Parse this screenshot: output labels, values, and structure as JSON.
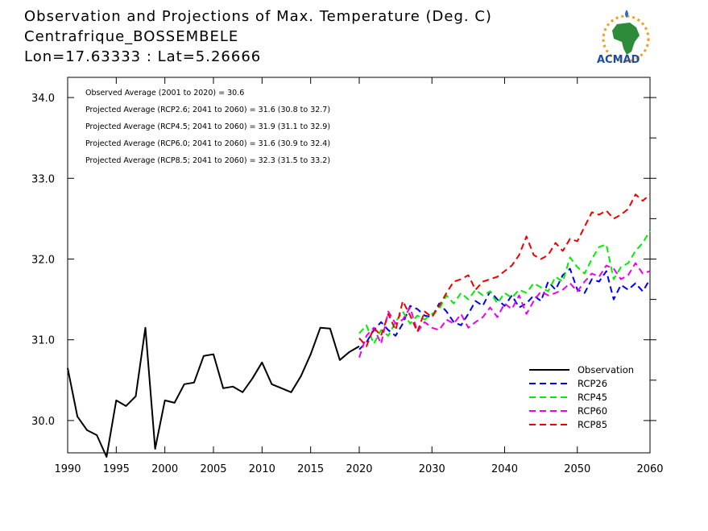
{
  "header": {
    "title_lines": [
      "Observation and Projections of Max. Temperature (Deg. C)",
      "Centrafrique_BOSSEMBELE",
      "Lon=17.63333 : Lat=5.26666"
    ]
  },
  "logo": {
    "text": "ACMAD",
    "icon": "africa-map-sun-icon"
  },
  "colors": {
    "Observation": "#000000",
    "RCP26": "#0000ee",
    "RCP45": "#00ee00",
    "RCP60": "#ee00ee",
    "RCP85": "#ee0000"
  },
  "chart_data": {
    "type": "line",
    "xlim": [
      1990,
      2060
    ],
    "ylim": [
      29.6,
      34.25
    ],
    "xticks": [
      1990,
      1995,
      2000,
      2005,
      2010,
      2015,
      2020,
      2030,
      2040,
      2050,
      2060
    ],
    "yticks": [
      30.0,
      31.0,
      32.0,
      33.0,
      34.0
    ],
    "ytick_labels": [
      "30.0",
      "31.0",
      "32.0",
      "33.0",
      "34.0"
    ],
    "annotations": [
      "Observed Average (2001 to 2020) = 30.6",
      "Projected Average (RCP2.6; 2041 to 2060) = 31.6 (30.8 to 32.7)",
      "Projected Average (RCP4.5; 2041 to 2060) = 31.9 (31.1 to 32.9)",
      "Projected Average (RCP6.0; 2041 to 2060) = 31.6 (30.9 to 32.4)",
      "Projected Average (RCP8.5; 2041 to 2060) = 32.3 (31.5 to 33.2)"
    ],
    "legend_position": "bottom-right",
    "series": [
      {
        "name": "Observation",
        "style": "solid",
        "x": [
          1990,
          1991,
          1992,
          1993,
          1994,
          1995,
          1996,
          1997,
          1998,
          1999,
          2000,
          2001,
          2002,
          2003,
          2004,
          2005,
          2006,
          2007,
          2008,
          2009,
          2010,
          2011,
          2012,
          2013,
          2014,
          2015,
          2016,
          2017,
          2018,
          2019,
          2020
        ],
        "values": [
          30.65,
          30.05,
          29.88,
          29.82,
          29.55,
          30.25,
          30.18,
          30.3,
          31.15,
          29.65,
          30.25,
          30.22,
          30.45,
          30.47,
          30.8,
          30.82,
          30.4,
          30.42,
          30.35,
          30.52,
          30.72,
          30.45,
          30.4,
          30.35,
          30.55,
          30.82,
          31.15,
          31.14,
          30.75,
          30.85,
          30.92
        ]
      },
      {
        "name": "RCP26",
        "style": "dashed",
        "x": [
          2020,
          2021,
          2022,
          2023,
          2024,
          2025,
          2026,
          2027,
          2028,
          2029,
          2030,
          2031,
          2032,
          2033,
          2034,
          2035,
          2036,
          2037,
          2038,
          2039,
          2040,
          2041,
          2042,
          2043,
          2044,
          2045,
          2046,
          2047,
          2048,
          2049,
          2050,
          2051,
          2052,
          2053,
          2054,
          2055,
          2056,
          2057,
          2058,
          2059,
          2060
        ],
        "values": [
          30.88,
          30.97,
          31.12,
          31.22,
          31.12,
          31.05,
          31.2,
          31.42,
          31.38,
          31.3,
          31.28,
          31.45,
          31.35,
          31.22,
          31.18,
          31.32,
          31.48,
          31.42,
          31.6,
          31.5,
          31.42,
          31.55,
          31.4,
          31.45,
          31.55,
          31.48,
          31.72,
          31.62,
          31.8,
          31.88,
          31.62,
          31.58,
          31.75,
          31.72,
          31.85,
          31.5,
          31.68,
          31.62,
          31.7,
          31.6,
          31.75
        ]
      },
      {
        "name": "RCP45",
        "style": "dashed",
        "x": [
          2020,
          2021,
          2022,
          2023,
          2024,
          2025,
          2026,
          2027,
          2028,
          2029,
          2030,
          2031,
          2032,
          2033,
          2034,
          2035,
          2036,
          2037,
          2038,
          2039,
          2040,
          2041,
          2042,
          2043,
          2044,
          2045,
          2046,
          2047,
          2048,
          2049,
          2050,
          2051,
          2052,
          2053,
          2054,
          2055,
          2056,
          2057,
          2058,
          2059,
          2060
        ],
        "values": [
          31.08,
          31.18,
          30.95,
          31.12,
          31.05,
          31.22,
          31.35,
          31.2,
          31.3,
          31.25,
          31.32,
          31.38,
          31.55,
          31.45,
          31.58,
          31.5,
          31.62,
          31.55,
          31.6,
          31.45,
          31.58,
          31.52,
          31.62,
          31.58,
          31.7,
          31.65,
          31.6,
          31.78,
          31.72,
          32.02,
          31.9,
          31.82,
          32.0,
          32.15,
          32.18,
          31.75,
          31.9,
          31.95,
          32.1,
          32.2,
          32.35
        ]
      },
      {
        "name": "RCP60",
        "style": "dashed",
        "x": [
          2020,
          2021,
          2022,
          2023,
          2024,
          2025,
          2026,
          2027,
          2028,
          2029,
          2030,
          2031,
          2032,
          2033,
          2034,
          2035,
          2036,
          2037,
          2038,
          2039,
          2040,
          2041,
          2042,
          2043,
          2044,
          2045,
          2046,
          2047,
          2048,
          2049,
          2050,
          2051,
          2052,
          2053,
          2054,
          2055,
          2056,
          2057,
          2058,
          2059,
          2060
        ],
        "values": [
          30.78,
          31.05,
          31.15,
          30.95,
          31.35,
          31.2,
          31.25,
          31.4,
          31.1,
          31.22,
          31.15,
          31.12,
          31.25,
          31.2,
          31.32,
          31.15,
          31.22,
          31.28,
          31.4,
          31.28,
          31.45,
          31.38,
          31.55,
          31.32,
          31.48,
          31.6,
          31.55,
          31.58,
          31.62,
          31.7,
          31.6,
          31.72,
          31.82,
          31.78,
          31.92,
          31.88,
          31.75,
          31.8,
          31.95,
          31.82,
          31.85
        ]
      },
      {
        "name": "RCP85",
        "style": "dashed",
        "x": [
          2020,
          2021,
          2022,
          2023,
          2024,
          2025,
          2026,
          2027,
          2028,
          2029,
          2030,
          2031,
          2032,
          2033,
          2034,
          2035,
          2036,
          2037,
          2038,
          2039,
          2040,
          2041,
          2042,
          2043,
          2044,
          2045,
          2046,
          2047,
          2048,
          2049,
          2050,
          2051,
          2052,
          2053,
          2054,
          2055,
          2056,
          2057,
          2058,
          2059,
          2060
        ],
        "values": [
          31.02,
          30.92,
          31.15,
          31.05,
          31.32,
          31.12,
          31.48,
          31.3,
          31.1,
          31.35,
          31.28,
          31.42,
          31.58,
          31.72,
          31.75,
          31.8,
          31.62,
          31.72,
          31.75,
          31.78,
          31.85,
          31.92,
          32.05,
          32.28,
          32.05,
          32.0,
          32.05,
          32.2,
          32.1,
          32.25,
          32.22,
          32.4,
          32.58,
          32.55,
          32.6,
          32.5,
          32.55,
          32.62,
          32.8,
          32.72,
          32.8
        ]
      }
    ]
  }
}
